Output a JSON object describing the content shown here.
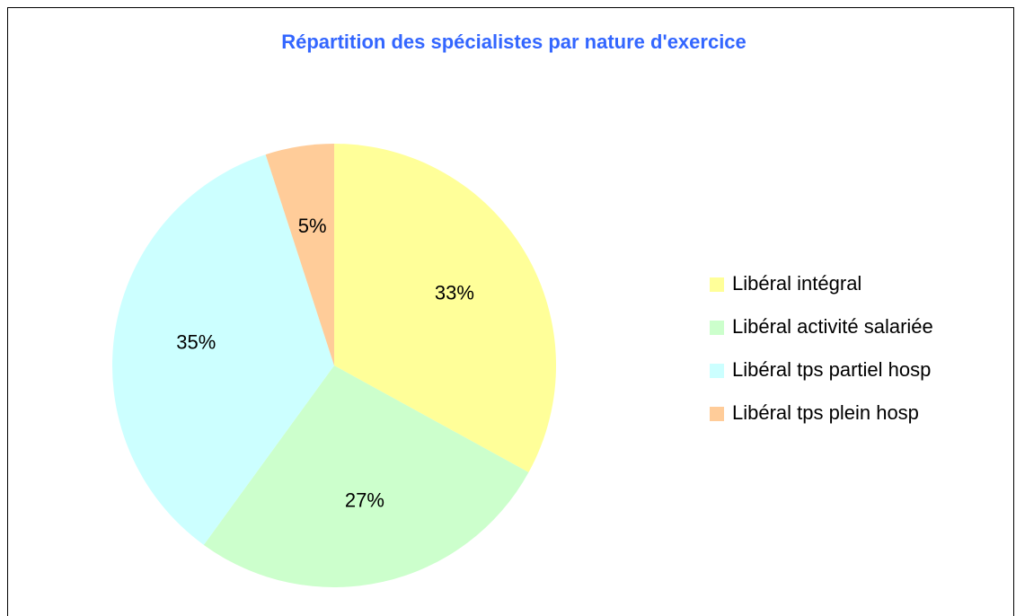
{
  "chart_data": {
    "type": "pie",
    "title": "Répartition des spécialistes par nature d'exercice",
    "categories": [
      "Libéral intégral",
      "Libéral activité salariée",
      "Libéral tps partiel hosp",
      "Libéral tps plein hosp"
    ],
    "values": [
      33,
      27,
      35,
      5
    ],
    "value_labels": [
      "33%",
      "27%",
      "35%",
      "5%"
    ],
    "colors": [
      "#ffff99",
      "#ccffcc",
      "#ccffff",
      "#ffcc99"
    ],
    "legend": "right"
  }
}
